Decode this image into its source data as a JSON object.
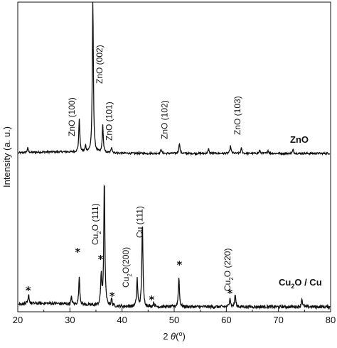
{
  "chart_data": {
    "type": "line",
    "xlabel_prefix": "2 ",
    "xlabel_theta": "θ",
    "xlabel_unit_open": "(",
    "xlabel_degree": "o",
    "xlabel_unit_close": ")",
    "ylabel": "Intensity (a. u.)",
    "xlim": [
      20,
      80
    ],
    "xticks": [
      20,
      30,
      40,
      50,
      60,
      70,
      80
    ],
    "yticks_shown": false,
    "series": [
      {
        "name": "ZnO",
        "label_main": "ZnO",
        "label_sub": "",
        "label_tail": "",
        "baseline": 0.0,
        "peaks": [
          {
            "x": 21.9,
            "h": 0.03
          },
          {
            "x": 31.8,
            "h": 0.22
          },
          {
            "x": 33.0,
            "h": 0.04
          },
          {
            "x": 34.4,
            "h": 1.0
          },
          {
            "x": 36.3,
            "h": 0.18
          },
          {
            "x": 38.0,
            "h": 0.04
          },
          {
            "x": 47.5,
            "h": 0.03
          },
          {
            "x": 51.0,
            "h": 0.07
          },
          {
            "x": 56.6,
            "h": 0.03
          },
          {
            "x": 60.8,
            "h": 0.05
          },
          {
            "x": 62.9,
            "h": 0.035
          },
          {
            "x": 66.4,
            "h": 0.02
          },
          {
            "x": 68.0,
            "h": 0.02
          },
          {
            "x": 72.8,
            "h": 0.025
          }
        ]
      },
      {
        "name": "Cu2O / Cu",
        "label_main": "Cu",
        "label_sub": "2",
        "label_tail": "O / Cu",
        "baseline": 0.0,
        "peaks": [
          {
            "x": 22.1,
            "h": 0.06
          },
          {
            "x": 30.3,
            "h": 0.05
          },
          {
            "x": 31.8,
            "h": 0.2
          },
          {
            "x": 36.0,
            "h": 0.22
          },
          {
            "x": 36.6,
            "h": 0.92
          },
          {
            "x": 38.0,
            "h": 0.05
          },
          {
            "x": 42.9,
            "h": 0.2
          },
          {
            "x": 43.9,
            "h": 0.62
          },
          {
            "x": 46.1,
            "h": 0.03
          },
          {
            "x": 50.9,
            "h": 0.22
          },
          {
            "x": 60.7,
            "h": 0.07
          },
          {
            "x": 61.7,
            "h": 0.09
          },
          {
            "x": 74.5,
            "h": 0.06
          }
        ]
      }
    ],
    "peak_labels": [
      {
        "text": "ZnO (100)",
        "x": 30.9,
        "series": "ZnO"
      },
      {
        "text": "ZnO (002)",
        "x": 36.2,
        "series": "ZnO"
      },
      {
        "text": "ZnO (101)",
        "x": 38.1,
        "series": "ZnO"
      },
      {
        "text": "ZnO (102)",
        "x": 48.7,
        "series": "ZnO"
      },
      {
        "text": "ZnO (103)",
        "x": 62.7,
        "series": "ZnO"
      },
      {
        "text_main": "Cu",
        "text_sub": "2",
        "text_tail": "O (111)",
        "x": 35.4,
        "series": "Cu2O / Cu"
      },
      {
        "text_main": "Cu",
        "text_sub": "2",
        "text_tail": "O(200)",
        "x": 41.3,
        "series": "Cu2O / Cu"
      },
      {
        "text": "Cu (111)",
        "x": 43.9,
        "series": "Cu2O / Cu"
      },
      {
        "text_main": "Cu",
        "text_sub": "2",
        "text_tail": "O (220)",
        "x": 60.8,
        "series": "Cu2O / Cu"
      }
    ],
    "star_markers": [
      22.0,
      31.5,
      35.9,
      38.1,
      45.7,
      51.0,
      60.7
    ],
    "star_symbol": "*",
    "grid": false,
    "legend": "none"
  }
}
